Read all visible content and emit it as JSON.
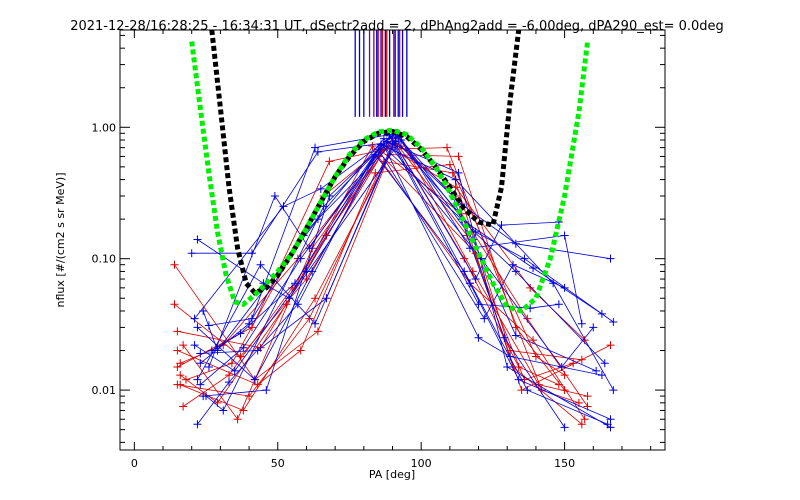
{
  "chart_data": {
    "type": "line",
    "title": "2021-12-28/16:28:25 - 16:34:31 UT, dSectr2add = 2, dPhAng2add = -6.00deg, dPA290_est=   0.0deg",
    "xlabel": "PA [deg]",
    "ylabel": "nflux [#/(cm2 s sr MeV)]",
    "xlim": [
      -5,
      185
    ],
    "ylim": [
      0.0035,
      5.5
    ],
    "yscale": "log",
    "x_ticks": [
      0,
      50,
      100,
      150
    ],
    "x_tick_labels": [
      "0",
      "50",
      "100",
      "150"
    ],
    "y_ticks": [
      0.01,
      0.1,
      1.0
    ],
    "y_tick_labels": [
      "0.01",
      "0.10",
      "1.00"
    ],
    "grid": false,
    "colors": {
      "red_series": "#dd0000",
      "blue_series": "#0000dd",
      "black_fit": "#000000",
      "green_fit": "#00ee00",
      "mark_purple": "#7700aa"
    },
    "vertical_marks": {
      "y_range": [
        1.2,
        5.5
      ],
      "blue": [
        77,
        78.5,
        80,
        84.5,
        86,
        87.5,
        89,
        90.5,
        92,
        93.5,
        95
      ],
      "red": [
        85,
        86.5,
        88,
        91,
        92.5
      ],
      "purple": [
        82,
        83.5
      ]
    },
    "fit_black": {
      "name": "",
      "x": [
        27,
        30,
        33,
        36,
        39,
        42,
        46,
        50,
        55,
        60,
        65,
        70,
        75,
        80,
        85,
        90,
        95,
        100,
        105,
        110,
        115,
        120,
        125,
        128,
        131,
        134
      ],
      "y": [
        5.5,
        1.4,
        0.35,
        0.12,
        0.065,
        0.055,
        0.06,
        0.075,
        0.11,
        0.17,
        0.27,
        0.42,
        0.6,
        0.78,
        0.9,
        0.93,
        0.85,
        0.68,
        0.5,
        0.35,
        0.24,
        0.19,
        0.18,
        0.35,
        1.6,
        5.5
      ]
    },
    "fit_green": {
      "name": "",
      "x": [
        20,
        23,
        26,
        29,
        32,
        35,
        38,
        42,
        46,
        50,
        55,
        60,
        65,
        70,
        75,
        80,
        85,
        90,
        95,
        100,
        105,
        110,
        115,
        120,
        125,
        130,
        135,
        140,
        145,
        150,
        155,
        158
      ],
      "y": [
        4.5,
        1.4,
        0.45,
        0.16,
        0.075,
        0.047,
        0.045,
        0.053,
        0.065,
        0.08,
        0.11,
        0.17,
        0.27,
        0.42,
        0.62,
        0.8,
        0.92,
        0.95,
        0.88,
        0.7,
        0.5,
        0.32,
        0.19,
        0.11,
        0.065,
        0.043,
        0.04,
        0.05,
        0.1,
        0.3,
        1.3,
        4.5
      ]
    },
    "series_red": [
      {
        "x": [
          14,
          42,
          64,
          89,
          113,
          133,
          150
        ],
        "y": [
          0.09,
          0.012,
          0.028,
          0.62,
          0.6,
          0.03,
          0.01
        ]
      },
      {
        "x": [
          14,
          37,
          60,
          88,
          112,
          138,
          157
        ],
        "y": [
          0.045,
          0.018,
          0.07,
          0.72,
          0.35,
          0.06,
          0.024
        ]
      },
      {
        "x": [
          15,
          44,
          67,
          90,
          116,
          136,
          153
        ],
        "y": [
          0.028,
          0.021,
          0.15,
          0.82,
          0.15,
          0.012,
          0.016
        ]
      },
      {
        "x": [
          15,
          40,
          61,
          87,
          111,
          131,
          156
        ],
        "y": [
          0.011,
          0.009,
          0.035,
          0.55,
          0.45,
          0.02,
          0.017
        ]
      },
      {
        "x": [
          16,
          31,
          57,
          86,
          114,
          137,
          158
        ],
        "y": [
          0.016,
          0.022,
          0.1,
          0.66,
          0.22,
          0.035,
          0.0075
        ]
      },
      {
        "x": [
          16,
          38,
          63,
          91,
          115,
          134,
          148
        ],
        "y": [
          0.011,
          0.007,
          0.05,
          0.75,
          0.1,
          0.015,
          0.011
        ]
      },
      {
        "x": [
          17,
          33,
          55,
          85,
          117,
          139,
          157
        ],
        "y": [
          0.0075,
          0.013,
          0.06,
          0.6,
          0.065,
          0.024,
          0.006
        ]
      },
      {
        "x": [
          15,
          43,
          58,
          84,
          110,
          140,
          150
        ],
        "y": [
          0.02,
          0.011,
          0.02,
          0.45,
          0.52,
          0.018,
          0.013
        ]
      },
      {
        "x": [
          16,
          29,
          53,
          83,
          119,
          132,
          156
        ],
        "y": [
          0.013,
          0.008,
          0.045,
          0.72,
          0.11,
          0.015,
          0.0055
        ]
      },
      {
        "x": [
          18,
          34,
          66,
          92,
          118,
          141,
          158
        ],
        "y": [
          0.012,
          0.016,
          0.3,
          0.88,
          0.08,
          0.011,
          0.009
        ]
      },
      {
        "x": [
          15,
          41,
          68,
          93,
          112,
          135,
          166
        ],
        "y": [
          0.015,
          0.03,
          0.55,
          0.72,
          0.3,
          0.01,
          0.022
        ]
      },
      {
        "x": [
          17,
          36,
          62,
          87,
          109,
          142,
          155
        ],
        "y": [
          0.022,
          0.006,
          0.12,
          0.68,
          0.7,
          0.01,
          0.008
        ]
      }
    ],
    "series_blue": [
      {
        "x": [
          20,
          41,
          64,
          91,
          114,
          133,
          166
        ],
        "y": [
          0.11,
          0.11,
          0.65,
          0.78,
          0.26,
          0.13,
          0.1
        ]
      },
      {
        "x": [
          21,
          52,
          65,
          90,
          119,
          136,
          167
        ],
        "y": [
          0.035,
          0.25,
          0.34,
          0.86,
          0.16,
          0.1,
          0.033
        ]
      },
      {
        "x": [
          22,
          44,
          63,
          92,
          117,
          150,
          156
        ],
        "y": [
          0.012,
          0.09,
          0.032,
          0.9,
          0.12,
          0.15,
          0.032
        ]
      },
      {
        "x": [
          23,
          40,
          59,
          87,
          121,
          149,
          160
        ],
        "y": [
          0.016,
          0.032,
          0.15,
          0.82,
          0.1,
          0.015,
          0.03
        ]
      },
      {
        "x": [
          22,
          33,
          57,
          86,
          112,
          146,
          167
        ],
        "y": [
          0.0055,
          0.0115,
          0.045,
          0.74,
          0.4,
          0.065,
          0.01
        ]
      },
      {
        "x": [
          24,
          46,
          68,
          91,
          118,
          133,
          161
        ],
        "y": [
          0.009,
          0.01,
          0.3,
          0.9,
          0.14,
          0.026,
          0.014
        ]
      },
      {
        "x": [
          23,
          38,
          58,
          87,
          120,
          131,
          163
        ],
        "y": [
          0.011,
          0.021,
          0.1,
          0.72,
          0.025,
          0.018,
          0.013
        ]
      },
      {
        "x": [
          21,
          35,
          60,
          84,
          115,
          137,
          165
        ],
        "y": [
          0.022,
          0.014,
          0.08,
          0.62,
          0.08,
          0.01,
          0.0055
        ]
      },
      {
        "x": [
          22,
          42,
          62,
          89,
          117,
          134,
          166
        ],
        "y": [
          0.03,
          0.012,
          0.08,
          0.86,
          0.065,
          0.012,
          0.006
        ]
      },
      {
        "x": [
          24,
          29,
          64,
          92,
          111,
          129,
          150
        ],
        "y": [
          0.04,
          0.02,
          0.2,
          0.84,
          0.3,
          0.025,
          0.0052
        ]
      },
      {
        "x": [
          25,
          31,
          66,
          88,
          113,
          130,
          166
        ],
        "y": [
          0.009,
          0.007,
          0.25,
          0.78,
          0.45,
          0.015,
          0.0052
        ]
      },
      {
        "x": [
          23,
          43,
          67,
          90,
          120,
          138,
          148
        ],
        "y": [
          0.019,
          0.02,
          0.05,
          0.75,
          0.045,
          0.042,
          0.045
        ]
      },
      {
        "x": [
          26,
          49,
          61,
          85,
          122,
          132,
          150
        ],
        "y": [
          0.015,
          0.3,
          0.12,
          0.68,
          0.035,
          0.09,
          0.06
        ]
      },
      {
        "x": [
          27,
          37,
          56,
          86,
          114,
          139,
          163
        ],
        "y": [
          0.02,
          0.027,
          0.065,
          0.74,
          0.2,
          0.085,
          0.038
        ]
      },
      {
        "x": [
          22,
          45,
          54,
          93,
          116,
          133,
          164
        ],
        "y": [
          0.14,
          0.065,
          0.05,
          0.8,
          0.18,
          0.08,
          0.016
        ]
      },
      {
        "x": [
          26,
          41,
          63,
          89,
          119,
          128,
          148
        ],
        "y": [
          0.031,
          0.035,
          0.7,
          0.88,
          0.07,
          0.18,
          0.19
        ]
      }
    ]
  }
}
